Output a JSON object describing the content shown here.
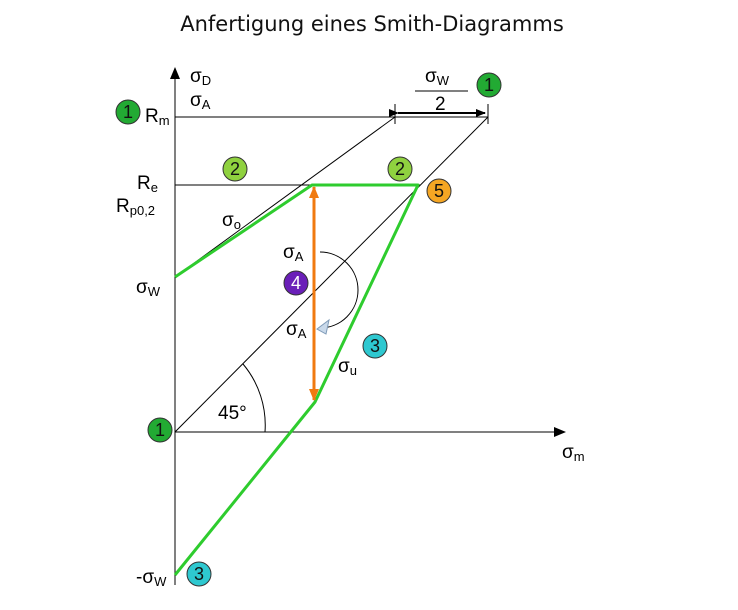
{
  "title": "Anfertigung eines Smith-Diagramms",
  "axes": {
    "y_label_top": "σD",
    "y_label_bottom": "σA",
    "x_label": "σm"
  },
  "labels": {
    "rm": "Rm",
    "re": "Re",
    "rp02": "Rp0,2",
    "sigma_w": "σW",
    "neg_sigma_w": "-σW",
    "sigma_o": "σo",
    "sigma_u": "σu",
    "sigma_a_upper": "σA",
    "sigma_a_lower": "σA",
    "angle": "45°",
    "fraction_num": "σW",
    "fraction_den": "2"
  },
  "markers": [
    {
      "id": "marker-1-rm",
      "text": "1",
      "color": "#22aa33"
    },
    {
      "id": "marker-1-top",
      "text": "1",
      "color": "#22aa33"
    },
    {
      "id": "marker-2-left",
      "text": "2",
      "color": "#8fd13f"
    },
    {
      "id": "marker-2-right",
      "text": "2",
      "color": "#8fd13f"
    },
    {
      "id": "marker-5",
      "text": "5",
      "color": "#f5a623"
    },
    {
      "id": "marker-4",
      "text": "4",
      "color": "#6a1fb8"
    },
    {
      "id": "marker-3-right",
      "text": "3",
      "color": "#2ec8d0"
    },
    {
      "id": "marker-1-origin",
      "text": "1",
      "color": "#22aa33"
    },
    {
      "id": "marker-3-bottom",
      "text": "3",
      "color": "#2ec8d0"
    }
  ],
  "colors": {
    "limit_lines": "#2ecc2e",
    "amplitude_arrow": "#f07a10"
  }
}
